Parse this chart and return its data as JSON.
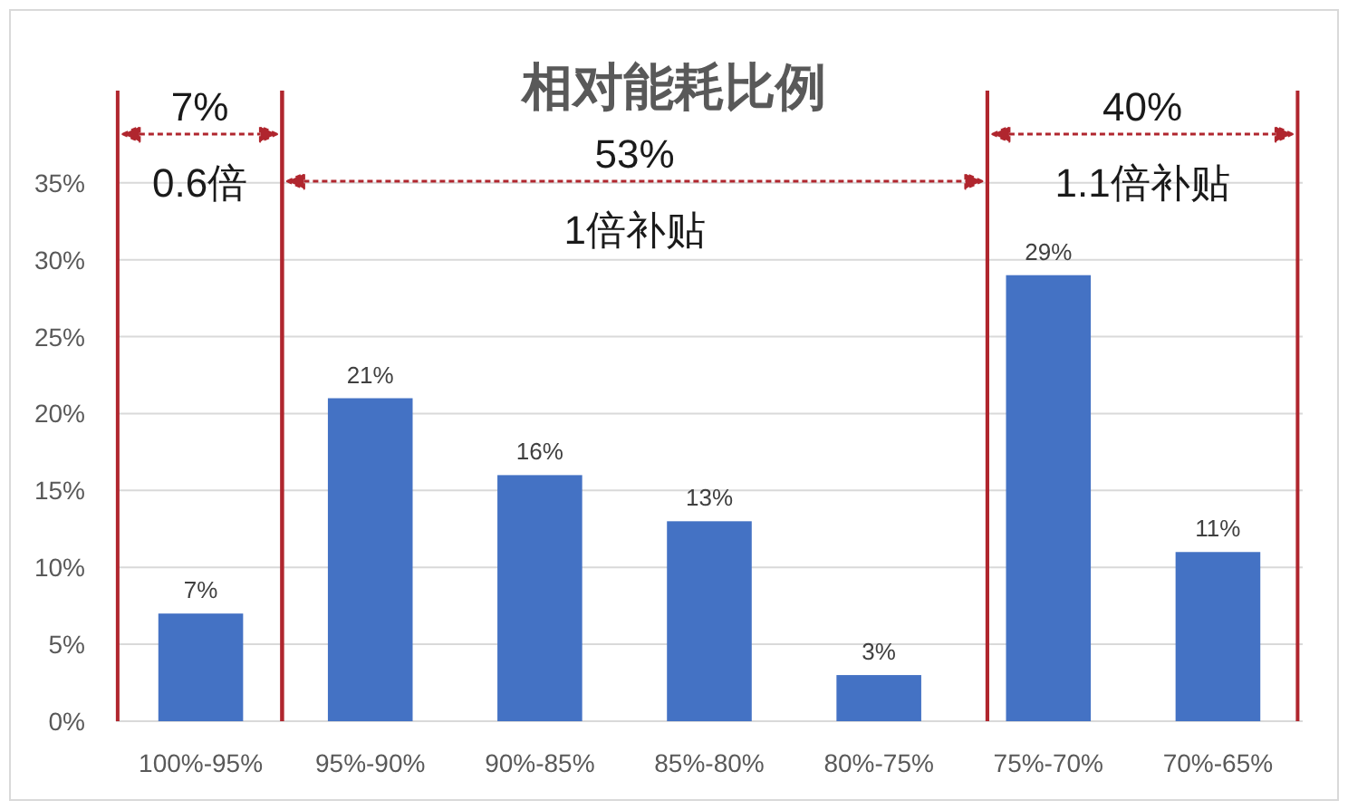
{
  "chart_data": {
    "type": "bar",
    "title": "相对能耗比例",
    "categories": [
      "100%-95%",
      "95%-90%",
      "90%-85%",
      "85%-80%",
      "80%-75%",
      "75%-70%",
      "70%-65%"
    ],
    "values": [
      7,
      21,
      16,
      13,
      3,
      29,
      11
    ],
    "color": "#4472c4",
    "value_labels": [
      "7%",
      "21%",
      "16%",
      "13%",
      "3%",
      "29%",
      "11%"
    ],
    "ylim": [
      0,
      41
    ],
    "yticks": [
      {
        "value": 0,
        "label": "0%"
      },
      {
        "value": 5,
        "label": "5%"
      },
      {
        "value": 10,
        "label": "10%"
      },
      {
        "value": 15,
        "label": "15%"
      },
      {
        "value": 20,
        "label": "20%"
      },
      {
        "value": 25,
        "label": "25%"
      },
      {
        "value": 30,
        "label": "30%"
      },
      {
        "value": 35,
        "label": "35%"
      }
    ],
    "grid": "y",
    "annotations": [
      "7%",
      "0.6倍",
      "53%",
      "1倍补贴",
      "40%",
      "1.1倍补贴"
    ]
  }
}
